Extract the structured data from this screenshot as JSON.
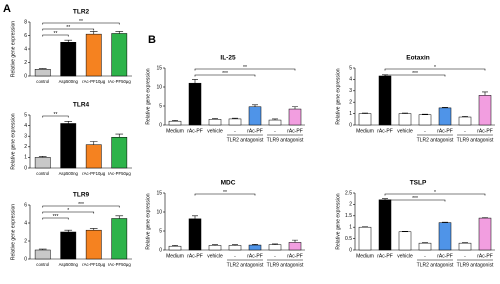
{
  "panel_labels": [
    "A",
    "B"
  ],
  "chart_data": [
    {
      "type": "bar",
      "title": "TLR2",
      "y_label": "Relative gene expression",
      "categories": [
        "control",
        "Asp500ng",
        "rAc-PF10μg",
        "rAc-PF50μg"
      ],
      "values": [
        1,
        5,
        6.2,
        6.3
      ],
      "errors": [
        0.1,
        0.3,
        0.4,
        0.3
      ],
      "colors": [
        "#c8c8c8",
        "#000000",
        "#f58220",
        "#2db34a"
      ],
      "ylim": [
        0,
        8
      ],
      "yticks": [
        0,
        2,
        4,
        6,
        8
      ],
      "significance": [
        "**",
        "**",
        "**"
      ]
    },
    {
      "type": "bar",
      "title": "TLR4",
      "y_label": "Relative gene expression",
      "categories": [
        "control",
        "Asp500ng",
        "rAc-PF10μg",
        "rAc-PF50μg"
      ],
      "values": [
        1,
        4.2,
        2.2,
        2.9
      ],
      "errors": [
        0.1,
        0.2,
        0.3,
        0.3
      ],
      "colors": [
        "#c8c8c8",
        "#000000",
        "#f58220",
        "#2db34a"
      ],
      "ylim": [
        0,
        5
      ],
      "yticks": [
        0,
        1,
        2,
        3,
        4,
        5
      ],
      "significance": [
        "**"
      ]
    },
    {
      "type": "bar",
      "title": "TLR9",
      "y_label": "Relative gene expression",
      "categories": [
        "control",
        "Asp500ng",
        "rAc-PF10μg",
        "rAc-PF50μg"
      ],
      "values": [
        1,
        3,
        3.2,
        4.5
      ],
      "errors": [
        0.1,
        0.2,
        0.2,
        0.3
      ],
      "colors": [
        "#c8c8c8",
        "#000000",
        "#f58220",
        "#2db34a"
      ],
      "ylim": [
        0,
        6
      ],
      "yticks": [
        0,
        2,
        4,
        6
      ],
      "significance": [
        "***",
        "*",
        "***"
      ]
    },
    {
      "type": "bar",
      "title": "IL-25",
      "y_label": "Relative gene expression",
      "categories": [
        "Medium",
        "rAc-PF",
        "vehicle",
        "-",
        "rAc-PF",
        "-",
        "rAc-PF"
      ],
      "group_labels": [
        "TLR2 antagonist",
        "TLR9 antagonist"
      ],
      "values": [
        1,
        11,
        1.5,
        1.6,
        4.8,
        1.3,
        4.2
      ],
      "errors": [
        0.2,
        1,
        0.2,
        0.2,
        0.5,
        0.3,
        0.6
      ],
      "colors": [
        "#ffffff",
        "#000000",
        "#ffffff",
        "#ffffff",
        "#4f94e8",
        "#ffffff",
        "#f29ee0"
      ],
      "ylim": [
        0,
        15
      ],
      "yticks": [
        0,
        5,
        10,
        15
      ],
      "significance": [
        "***",
        "**"
      ]
    },
    {
      "type": "bar",
      "title": "Eotaxin",
      "y_label": "Relative gene expression",
      "categories": [
        "Medium",
        "rAc-PF",
        "vehicle",
        "-",
        "rAc-PF",
        "-",
        "rAc-PF"
      ],
      "group_labels": [
        "TLR2 antagonist",
        "TLR9 antagonist"
      ],
      "values": [
        1,
        4.3,
        1,
        0.9,
        1.5,
        0.7,
        2.6
      ],
      "errors": [
        0.05,
        0.1,
        0.05,
        0.05,
        0.05,
        0.05,
        0.3
      ],
      "colors": [
        "#ffffff",
        "#000000",
        "#ffffff",
        "#ffffff",
        "#4f94e8",
        "#ffffff",
        "#f29ee0"
      ],
      "ylim": [
        0,
        5
      ],
      "yticks": [
        0,
        1,
        2,
        3,
        4,
        5
      ],
      "significance": [
        "***",
        "*"
      ]
    },
    {
      "type": "bar",
      "title": "MDC",
      "y_label": "Relative gene expression",
      "categories": [
        "Medium",
        "rAc-PF",
        "vehicle",
        "-",
        "rAc-PF",
        "-",
        "rAc-PF"
      ],
      "group_labels": [
        "TLR2 antagonist",
        "TLR9 antagonist"
      ],
      "values": [
        1,
        8.2,
        1.2,
        1.2,
        1.3,
        1.4,
        2
      ],
      "errors": [
        0.2,
        0.8,
        0.2,
        0.2,
        0.2,
        0.2,
        0.6
      ],
      "colors": [
        "#ffffff",
        "#000000",
        "#ffffff",
        "#ffffff",
        "#4f94e8",
        "#ffffff",
        "#f29ee0"
      ],
      "ylim": [
        0,
        15
      ],
      "yticks": [
        0,
        5,
        10,
        15
      ],
      "significance": [
        "**"
      ]
    },
    {
      "type": "bar",
      "title": "TSLP",
      "y_label": "Relative gene expression",
      "categories": [
        "Medium",
        "rAc-PF",
        "vehicle",
        "-",
        "rAc-PF",
        "-",
        "rAc-PF"
      ],
      "group_labels": [
        "TLR2 antagonist",
        "TLR9 antagonist"
      ],
      "values": [
        1,
        2.2,
        0.8,
        0.3,
        1.2,
        0.3,
        1.4
      ],
      "errors": [
        0.02,
        0.05,
        0.02,
        0.02,
        0.02,
        0.02,
        0.02
      ],
      "colors": [
        "#ffffff",
        "#000000",
        "#ffffff",
        "#ffffff",
        "#4f94e8",
        "#ffffff",
        "#f29ee0"
      ],
      "ylim": [
        0,
        2.5
      ],
      "yticks": [
        0,
        0.5,
        1,
        1.5,
        2,
        2.5
      ],
      "significance": [
        "***",
        "*"
      ]
    }
  ]
}
